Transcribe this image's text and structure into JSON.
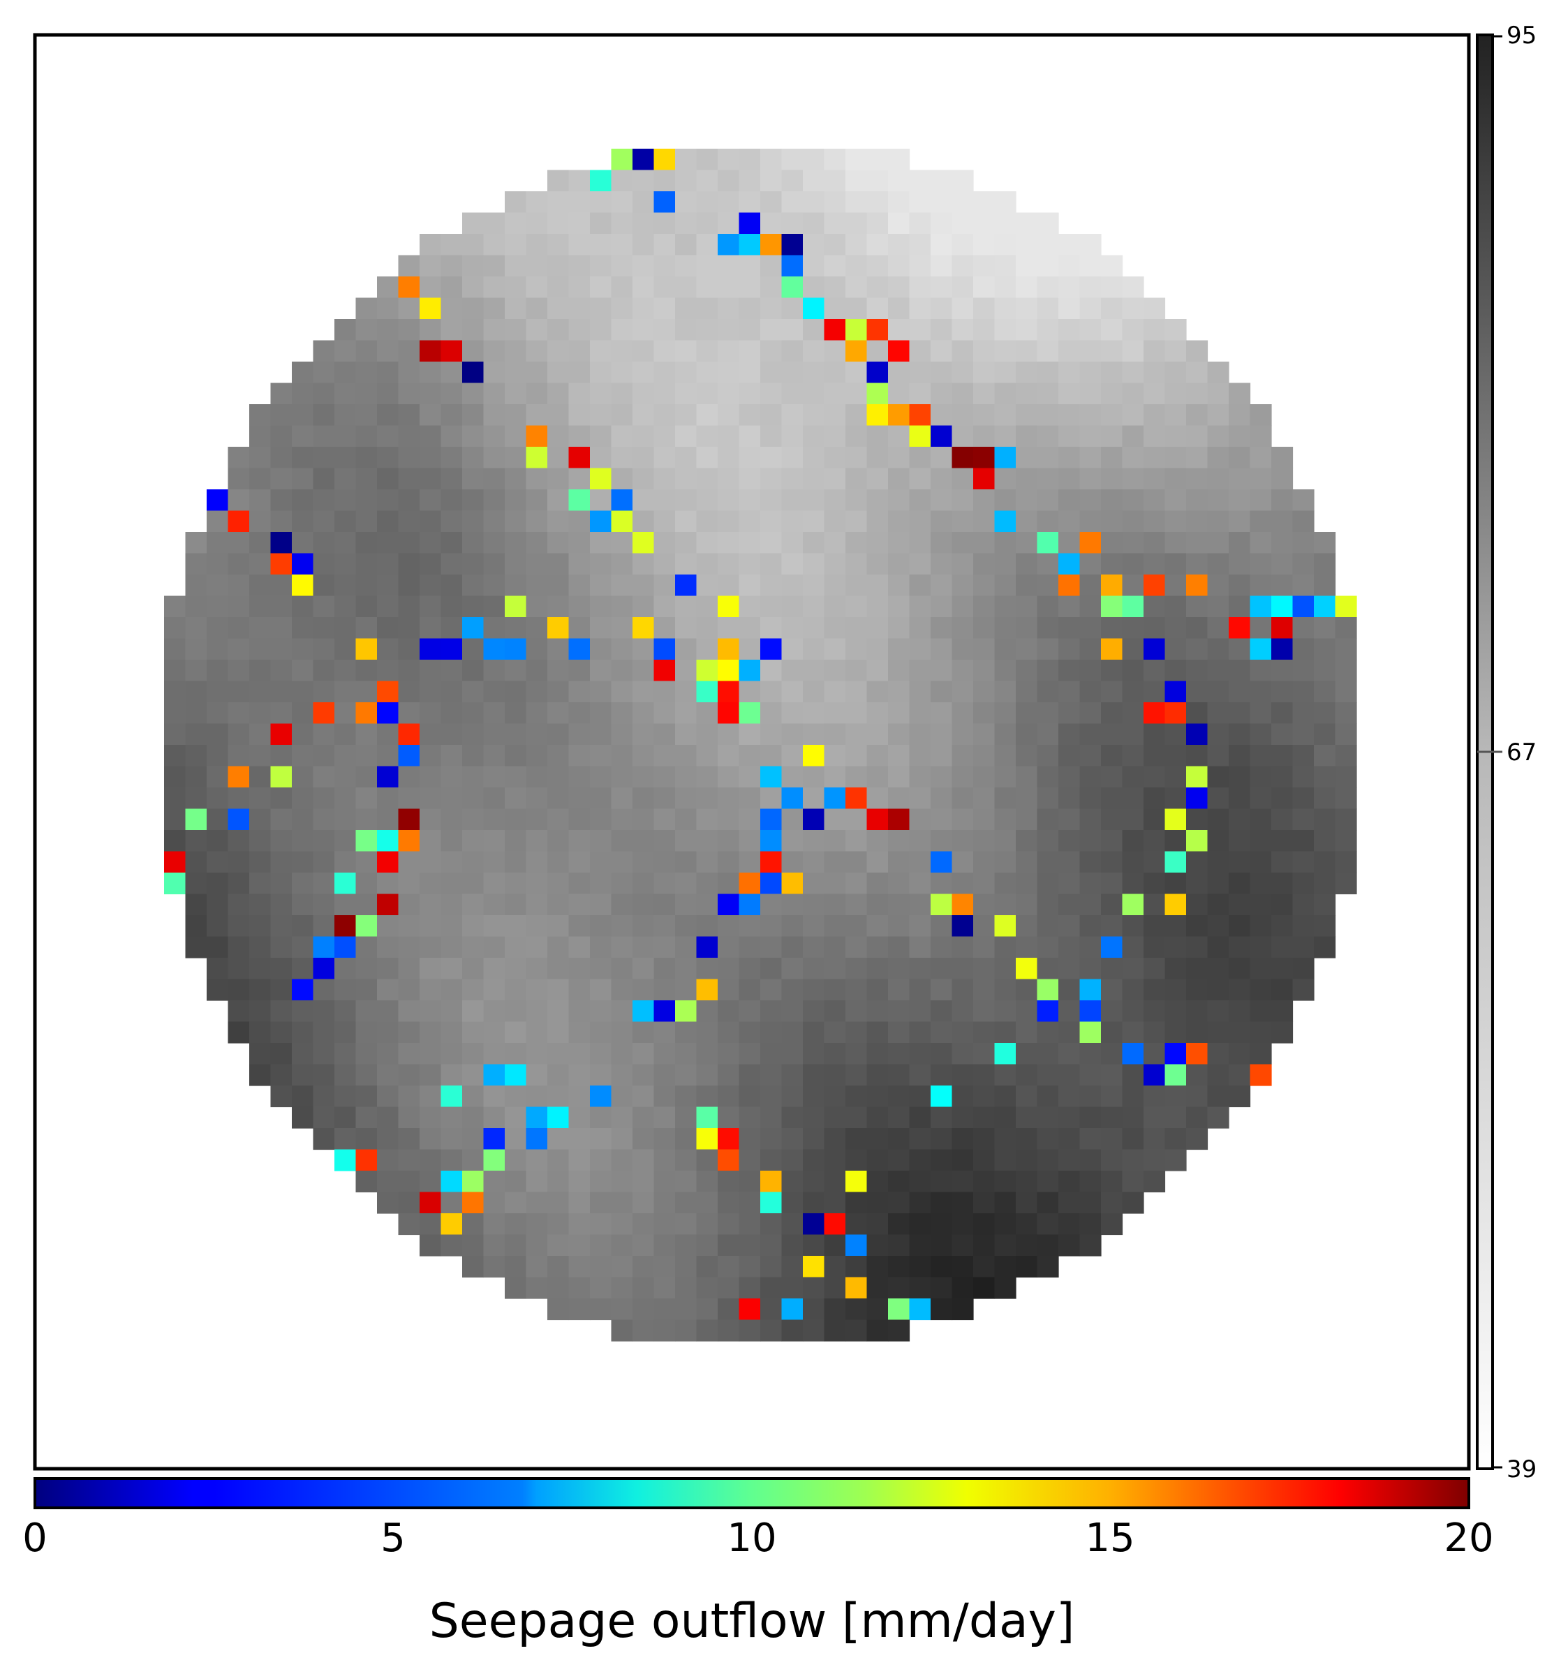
{
  "chart_data": {
    "type": "heatmap",
    "title": "",
    "grid_size": 56,
    "domain_shape": "circle",
    "background_colormap": "gray",
    "background_seed": 17,
    "seepage_colormap": "jet",
    "seepage_seed": 91,
    "seepage_probability": 0.11,
    "colorbar_bottom": {
      "label": "Seepage outflow [mm/day]",
      "min": 0,
      "max": 20,
      "ticks": [
        "0",
        "5",
        "10",
        "15",
        "20"
      ],
      "tick_values": [
        0,
        5,
        10,
        15,
        20
      ]
    },
    "colorbar_right": {
      "min": 39,
      "max": 95,
      "ticks": [
        "95",
        "67",
        "39"
      ],
      "tick_values": [
        95,
        67,
        39
      ]
    },
    "grid": false,
    "legend": "none"
  }
}
